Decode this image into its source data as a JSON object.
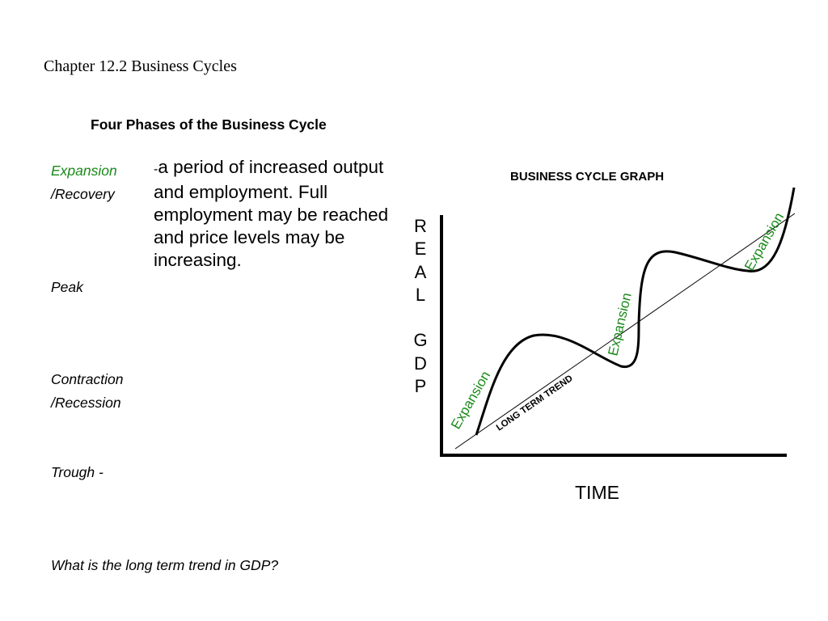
{
  "page": {
    "chapter_title": "Chapter 12.2 Business Cycles",
    "subtitle": "Four Phases of the Business Cycle"
  },
  "phases": {
    "expansion": "Expansion",
    "recovery": "/Recovery",
    "expansion_dash": "-",
    "expansion_desc": "a period of increased output and employment. Full employment may be reached and price levels may be increasing.",
    "peak": "Peak",
    "contraction": "Contraction",
    "recession": "/Recession",
    "trough": "Trough -"
  },
  "question": "What is the long term trend in GDP?",
  "graph": {
    "title": "BUSINESS CYCLE GRAPH",
    "y_axis_letters": [
      "R",
      "E",
      "A",
      "L",
      "",
      "G",
      "D",
      "P"
    ],
    "x_axis_label": "TIME",
    "trend_label": "LONG TERM TREND",
    "expansion_labels": [
      "Expansion",
      "Expansion",
      "Expansion"
    ],
    "colors": {
      "expansion_label": "#1a8a1a",
      "lines": "#000000"
    }
  }
}
